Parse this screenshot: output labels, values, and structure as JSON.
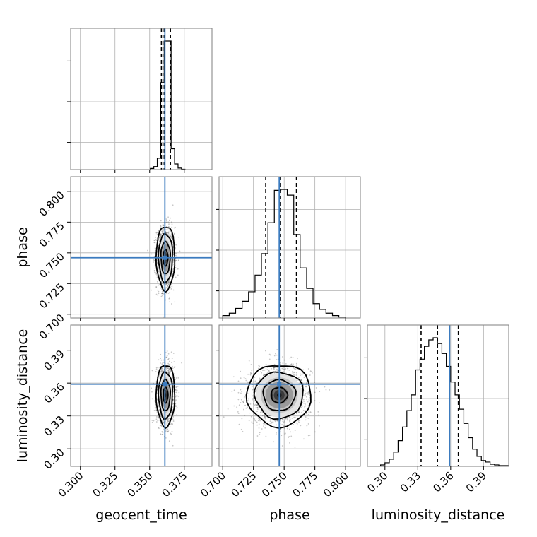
{
  "chart_data": {
    "type": "corner",
    "truth_color": "#3b7bbf",
    "parameters": [
      {
        "name": "geocent_time",
        "range": [
          0.293,
          0.395
        ],
        "ticks": [
          0.3,
          0.325,
          0.35,
          0.375
        ],
        "tick_labels": [
          "0.300",
          "0.325",
          "0.350",
          "0.375"
        ],
        "truth": 0.361,
        "quantiles": [
          0.3585,
          0.3605,
          0.365
        ]
      },
      {
        "name": "phase",
        "range": [
          0.697,
          0.812
        ],
        "ticks": [
          0.7,
          0.725,
          0.75,
          0.775,
          0.8
        ],
        "tick_labels": [
          "0.700",
          "0.725",
          "0.750",
          "0.775",
          "0.800"
        ],
        "truth": 0.746,
        "quantiles": [
          0.735,
          0.747,
          0.76
        ]
      },
      {
        "name": "luminosity_distance",
        "range": [
          0.284,
          0.413
        ],
        "ticks": [
          0.3,
          0.33,
          0.36,
          0.39
        ],
        "tick_labels": [
          "0.30",
          "0.33",
          "0.36",
          "0.39"
        ],
        "truth": 0.359,
        "quantiles": [
          0.333,
          0.348,
          0.367
        ]
      }
    ],
    "histograms": {
      "geocent_time": {
        "bin_edges": [
          0.3505,
          0.353,
          0.3555,
          0.358,
          0.3605,
          0.363,
          0.3655,
          0.368,
          0.3705,
          0.373,
          0.3755
        ],
        "counts": [
          3,
          8,
          30,
          230,
          340,
          340,
          55,
          15,
          4,
          1
        ]
      },
      "phase": {
        "bin_edges": [
          0.7,
          0.7053,
          0.7105,
          0.7158,
          0.721,
          0.7263,
          0.7315,
          0.7368,
          0.742,
          0.7473,
          0.7525,
          0.7578,
          0.763,
          0.7683,
          0.7735,
          0.7788,
          0.784,
          0.7893,
          0.7945,
          0.8
        ],
        "counts": [
          5,
          10,
          20,
          35,
          55,
          90,
          135,
          200,
          268,
          270,
          258,
          175,
          105,
          62,
          30,
          18,
          10,
          5,
          2
        ]
      },
      "luminosity_distance": {
        "bin_edges": [
          0.296,
          0.3,
          0.304,
          0.308,
          0.312,
          0.316,
          0.32,
          0.324,
          0.328,
          0.332,
          0.336,
          0.34,
          0.344,
          0.348,
          0.352,
          0.356,
          0.36,
          0.364,
          0.368,
          0.372,
          0.376,
          0.38,
          0.384,
          0.388,
          0.392,
          0.396,
          0.4,
          0.404,
          0.408,
          0.413
        ],
        "counts": [
          2,
          5,
          10,
          20,
          36,
          55,
          78,
          100,
          135,
          150,
          168,
          177,
          180,
          172,
          158,
          140,
          118,
          100,
          80,
          60,
          40,
          24,
          14,
          8,
          6,
          3,
          2,
          1,
          1
        ]
      }
    },
    "joint": [
      {
        "x": "geocent_time",
        "y": "phase",
        "center": [
          0.3615,
          0.746
        ],
        "sigma": [
          0.0032,
          0.0125
        ]
      },
      {
        "x": "geocent_time",
        "y": "luminosity_distance",
        "center": [
          0.3615,
          0.349
        ],
        "sigma": [
          0.0032,
          0.0135
        ]
      },
      {
        "x": "phase",
        "y": "luminosity_distance",
        "center": [
          0.746,
          0.349
        ],
        "sigma": [
          0.0125,
          0.0135
        ]
      }
    ],
    "contour_levels_sigma": [
      0.5,
      1.0,
      1.5,
      2.0
    ],
    "grid": true
  }
}
